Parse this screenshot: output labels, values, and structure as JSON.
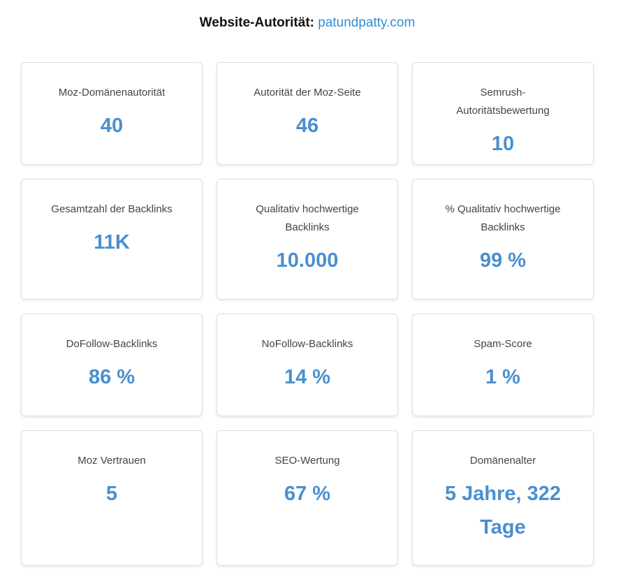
{
  "header": {
    "label": "Website-Autorität:",
    "domain": "patundpatty.com"
  },
  "cards": [
    {
      "title": "Moz-Domänenautorität",
      "value": "40"
    },
    {
      "title": "Autorität der Moz-Seite",
      "value": "46"
    },
    {
      "title": "Semrush-Autoritätsbewertung",
      "value": "10"
    },
    {
      "title": "Gesamtzahl der Backlinks",
      "value": "11K"
    },
    {
      "title": "Qualitativ hochwertige Backlinks",
      "value": "10.000"
    },
    {
      "title": "% Qualitativ hochwertige Backlinks",
      "value": "99 %"
    },
    {
      "title": "DoFollow-Backlinks",
      "value": "86 %"
    },
    {
      "title": "NoFollow-Backlinks",
      "value": "14 %"
    },
    {
      "title": "Spam-Score",
      "value": "1 %"
    },
    {
      "title": "Moz Vertrauen",
      "value": "5"
    },
    {
      "title": "SEO-Wertung",
      "value": "67 %"
    },
    {
      "title": "Domänenalter",
      "value": "5 Jahre, 322 Tage"
    }
  ],
  "colors": {
    "accent": "#4a8fcf",
    "link": "#2f8fd0"
  }
}
